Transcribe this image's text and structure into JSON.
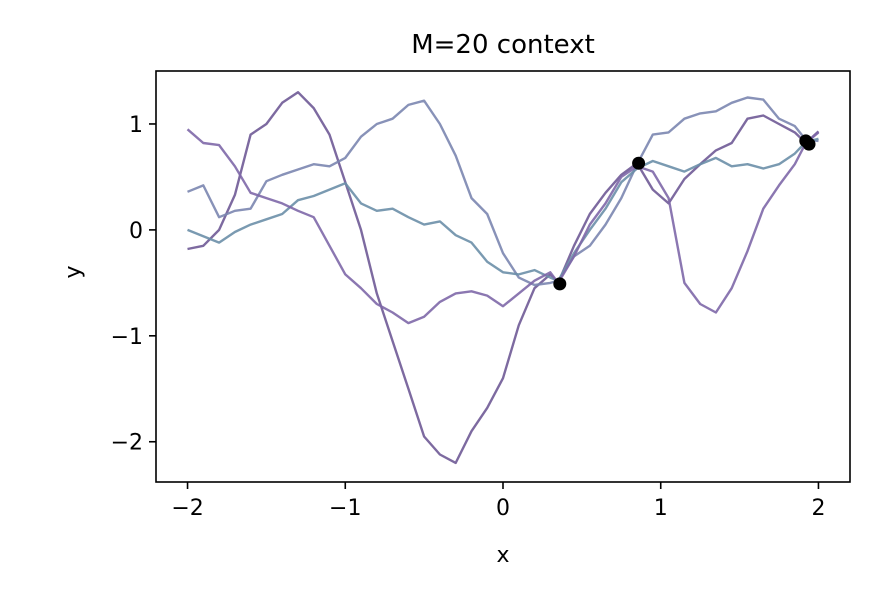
{
  "chart_data": {
    "type": "line",
    "title": "M=20 context",
    "xlabel": "x",
    "ylabel": "y",
    "xlim": [
      -2.2,
      2.2
    ],
    "ylim": [
      -2.38,
      1.5
    ],
    "xticks": [
      -2,
      -1,
      0,
      1,
      2
    ],
    "yticks": [
      -2,
      -1,
      0,
      1
    ],
    "xtick_labels": [
      "−2",
      "−1",
      "0",
      "1",
      "2"
    ],
    "ytick_labels": [
      "−2",
      "−1",
      "0",
      "1"
    ],
    "grid": false,
    "colors": {
      "mid_purple": "#6f5a96",
      "lavender": "#7b86b0",
      "slate_blue": "#6c8fa9",
      "violet": "#7e68a8",
      "context_point": "#000000"
    },
    "series": [
      {
        "color_key": "mid_purple",
        "x": [
          -2.0,
          -1.9,
          -1.8,
          -1.7,
          -1.6,
          -1.5,
          -1.4,
          -1.3,
          -1.2,
          -1.1,
          -1.0,
          -0.9,
          -0.8,
          -0.7,
          -0.6,
          -0.5,
          -0.4,
          -0.3,
          -0.2,
          -0.1,
          0.0,
          0.1,
          0.2,
          0.3,
          0.35,
          0.45,
          0.55,
          0.65,
          0.75,
          0.85,
          0.95,
          1.05,
          1.15,
          1.25,
          1.35,
          1.45,
          1.55,
          1.65,
          1.75,
          1.85,
          1.92,
          2.0
        ],
        "y": [
          -0.18,
          -0.15,
          0.0,
          0.33,
          0.9,
          1.0,
          1.2,
          1.3,
          1.15,
          0.9,
          0.45,
          0.0,
          -0.6,
          -1.05,
          -1.5,
          -1.95,
          -2.12,
          -2.2,
          -1.9,
          -1.68,
          -1.4,
          -0.9,
          -0.55,
          -0.42,
          -0.5,
          -0.15,
          0.15,
          0.35,
          0.52,
          0.63,
          0.38,
          0.25,
          0.48,
          0.62,
          0.75,
          0.82,
          1.05,
          1.08,
          1.0,
          0.92,
          0.82,
          0.93
        ]
      },
      {
        "color_key": "lavender",
        "x": [
          -2.0,
          -1.9,
          -1.8,
          -1.7,
          -1.6,
          -1.5,
          -1.4,
          -1.3,
          -1.2,
          -1.1,
          -1.0,
          -0.9,
          -0.8,
          -0.7,
          -0.6,
          -0.5,
          -0.4,
          -0.3,
          -0.2,
          -0.1,
          0.0,
          0.1,
          0.2,
          0.3,
          0.35,
          0.45,
          0.55,
          0.65,
          0.75,
          0.85,
          0.95,
          1.05,
          1.15,
          1.25,
          1.35,
          1.45,
          1.55,
          1.65,
          1.75,
          1.85,
          1.92,
          2.0
        ],
        "y": [
          0.36,
          0.42,
          0.12,
          0.18,
          0.2,
          0.46,
          0.52,
          0.57,
          0.62,
          0.6,
          0.68,
          0.88,
          1.0,
          1.05,
          1.18,
          1.22,
          1.0,
          0.7,
          0.3,
          0.15,
          -0.22,
          -0.45,
          -0.52,
          -0.5,
          -0.48,
          -0.25,
          -0.15,
          0.05,
          0.3,
          0.62,
          0.9,
          0.92,
          1.05,
          1.1,
          1.12,
          1.2,
          1.25,
          1.23,
          1.05,
          0.98,
          0.85,
          0.84
        ]
      },
      {
        "color_key": "slate_blue",
        "x": [
          -2.0,
          -1.9,
          -1.8,
          -1.7,
          -1.6,
          -1.5,
          -1.4,
          -1.3,
          -1.2,
          -1.1,
          -1.0,
          -0.9,
          -0.8,
          -0.7,
          -0.6,
          -0.5,
          -0.4,
          -0.3,
          -0.2,
          -0.1,
          0.0,
          0.1,
          0.2,
          0.3,
          0.35,
          0.45,
          0.55,
          0.65,
          0.75,
          0.85,
          0.95,
          1.05,
          1.15,
          1.25,
          1.35,
          1.45,
          1.55,
          1.65,
          1.75,
          1.85,
          1.92,
          2.0
        ],
        "y": [
          0.0,
          -0.06,
          -0.12,
          -0.02,
          0.05,
          0.1,
          0.15,
          0.28,
          0.32,
          0.38,
          0.44,
          0.25,
          0.18,
          0.2,
          0.12,
          0.05,
          0.08,
          -0.05,
          -0.12,
          -0.3,
          -0.4,
          -0.42,
          -0.38,
          -0.45,
          -0.48,
          -0.22,
          0.0,
          0.2,
          0.45,
          0.58,
          0.65,
          0.6,
          0.55,
          0.62,
          0.68,
          0.6,
          0.62,
          0.58,
          0.62,
          0.72,
          0.83,
          0.86
        ]
      },
      {
        "color_key": "violet",
        "x": [
          -2.0,
          -1.9,
          -1.8,
          -1.7,
          -1.6,
          -1.5,
          -1.4,
          -1.3,
          -1.2,
          -1.1,
          -1.0,
          -0.9,
          -0.8,
          -0.7,
          -0.6,
          -0.5,
          -0.4,
          -0.3,
          -0.2,
          -0.1,
          0.0,
          0.1,
          0.2,
          0.3,
          0.35,
          0.45,
          0.55,
          0.65,
          0.75,
          0.85,
          0.95,
          1.05,
          1.15,
          1.25,
          1.35,
          1.45,
          1.55,
          1.65,
          1.75,
          1.85,
          1.92,
          2.0
        ],
        "y": [
          0.95,
          0.82,
          0.8,
          0.6,
          0.35,
          0.3,
          0.25,
          0.18,
          0.12,
          -0.15,
          -0.42,
          -0.55,
          -0.7,
          -0.78,
          -0.88,
          -0.82,
          -0.68,
          -0.6,
          -0.58,
          -0.62,
          -0.72,
          -0.6,
          -0.48,
          -0.4,
          -0.5,
          -0.25,
          0.05,
          0.25,
          0.5,
          0.6,
          0.55,
          0.3,
          -0.5,
          -0.7,
          -0.78,
          -0.55,
          -0.2,
          0.2,
          0.42,
          0.62,
          0.82,
          0.92
        ]
      }
    ],
    "context_points": {
      "x": [
        0.36,
        0.86,
        1.92,
        1.94
      ],
      "y": [
        -0.51,
        0.63,
        0.84,
        0.81
      ]
    }
  }
}
